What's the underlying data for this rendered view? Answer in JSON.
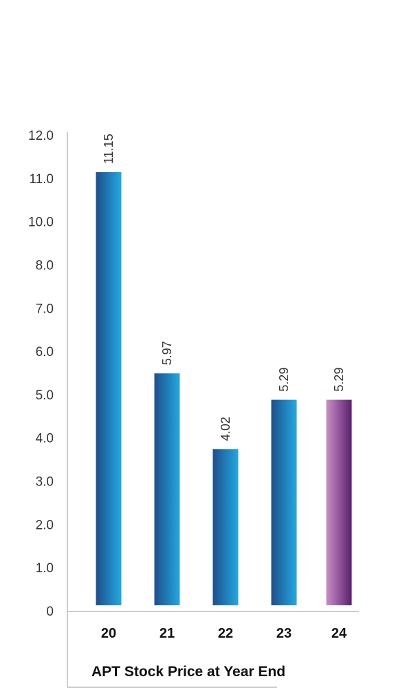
{
  "chart_data": {
    "type": "bar",
    "title": "APT Stock Price at Year End",
    "categories": [
      "20",
      "21",
      "22",
      "23",
      "24"
    ],
    "values": [
      11.15,
      5.97,
      4.02,
      5.29,
      5.29
    ],
    "value_labels": [
      "11.15",
      "5.97",
      "4.02",
      "5.29",
      "5.29"
    ],
    "y_ticks": [
      "0",
      "1.0",
      "2.0",
      "3.0",
      "4.0",
      "5.0",
      "6.0",
      "7.0",
      "8.0",
      "10.0",
      "11.0",
      "12.0"
    ],
    "ylim": [
      0,
      12
    ],
    "grid": false,
    "legend": "none",
    "colors": {
      "bar_dark": "#1f4e8c",
      "bar_light": "#22a9e1",
      "highlight_dark": "#5a1f6e",
      "highlight_light": "#c98ec8",
      "axis": "#999999"
    }
  }
}
